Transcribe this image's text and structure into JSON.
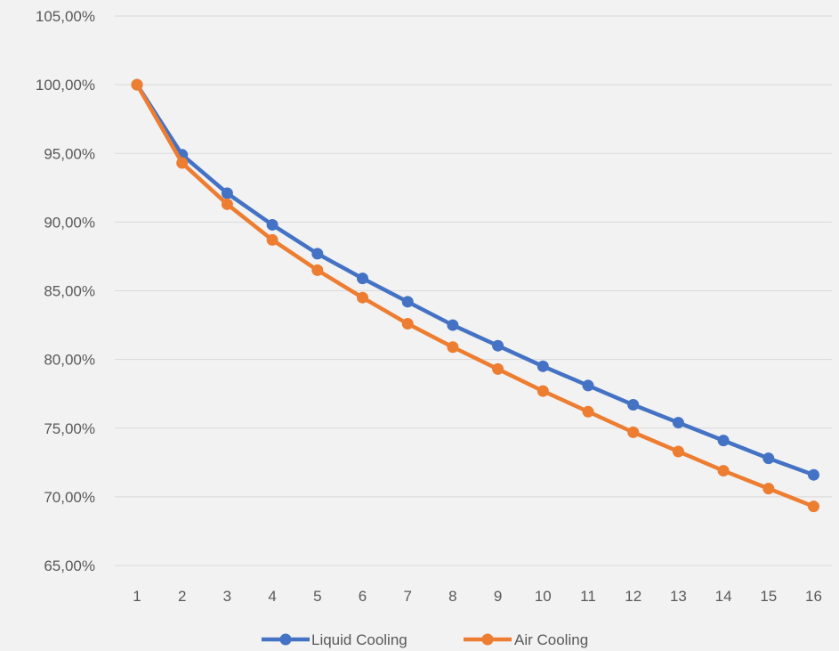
{
  "chart_data": {
    "type": "line",
    "title": "",
    "xlabel": "",
    "ylabel": "",
    "categories": [
      "1",
      "2",
      "3",
      "4",
      "5",
      "6",
      "7",
      "8",
      "9",
      "10",
      "11",
      "12",
      "13",
      "14",
      "15",
      "16"
    ],
    "ylim": [
      65,
      105
    ],
    "y_ticks": [
      "65,00%",
      "70,00%",
      "75,00%",
      "80,00%",
      "85,00%",
      "90,00%",
      "95,00%",
      "100,00%",
      "105,00%"
    ],
    "y_tick_values": [
      65,
      70,
      75,
      80,
      85,
      90,
      95,
      100,
      105
    ],
    "grid": "horizontal",
    "legend_position": "bottom",
    "series": [
      {
        "name": "Liquid Cooling",
        "color": "#4472c4",
        "values": [
          100.0,
          94.9,
          92.1,
          89.8,
          87.7,
          85.9,
          84.2,
          82.5,
          81.0,
          79.5,
          78.1,
          76.7,
          75.4,
          74.1,
          72.8,
          71.6
        ]
      },
      {
        "name": "Air Cooling",
        "color": "#ed7d31",
        "values": [
          100.0,
          94.3,
          91.3,
          88.7,
          86.5,
          84.5,
          82.6,
          80.9,
          79.3,
          77.7,
          76.2,
          74.7,
          73.3,
          71.9,
          70.6,
          69.3
        ]
      }
    ]
  }
}
